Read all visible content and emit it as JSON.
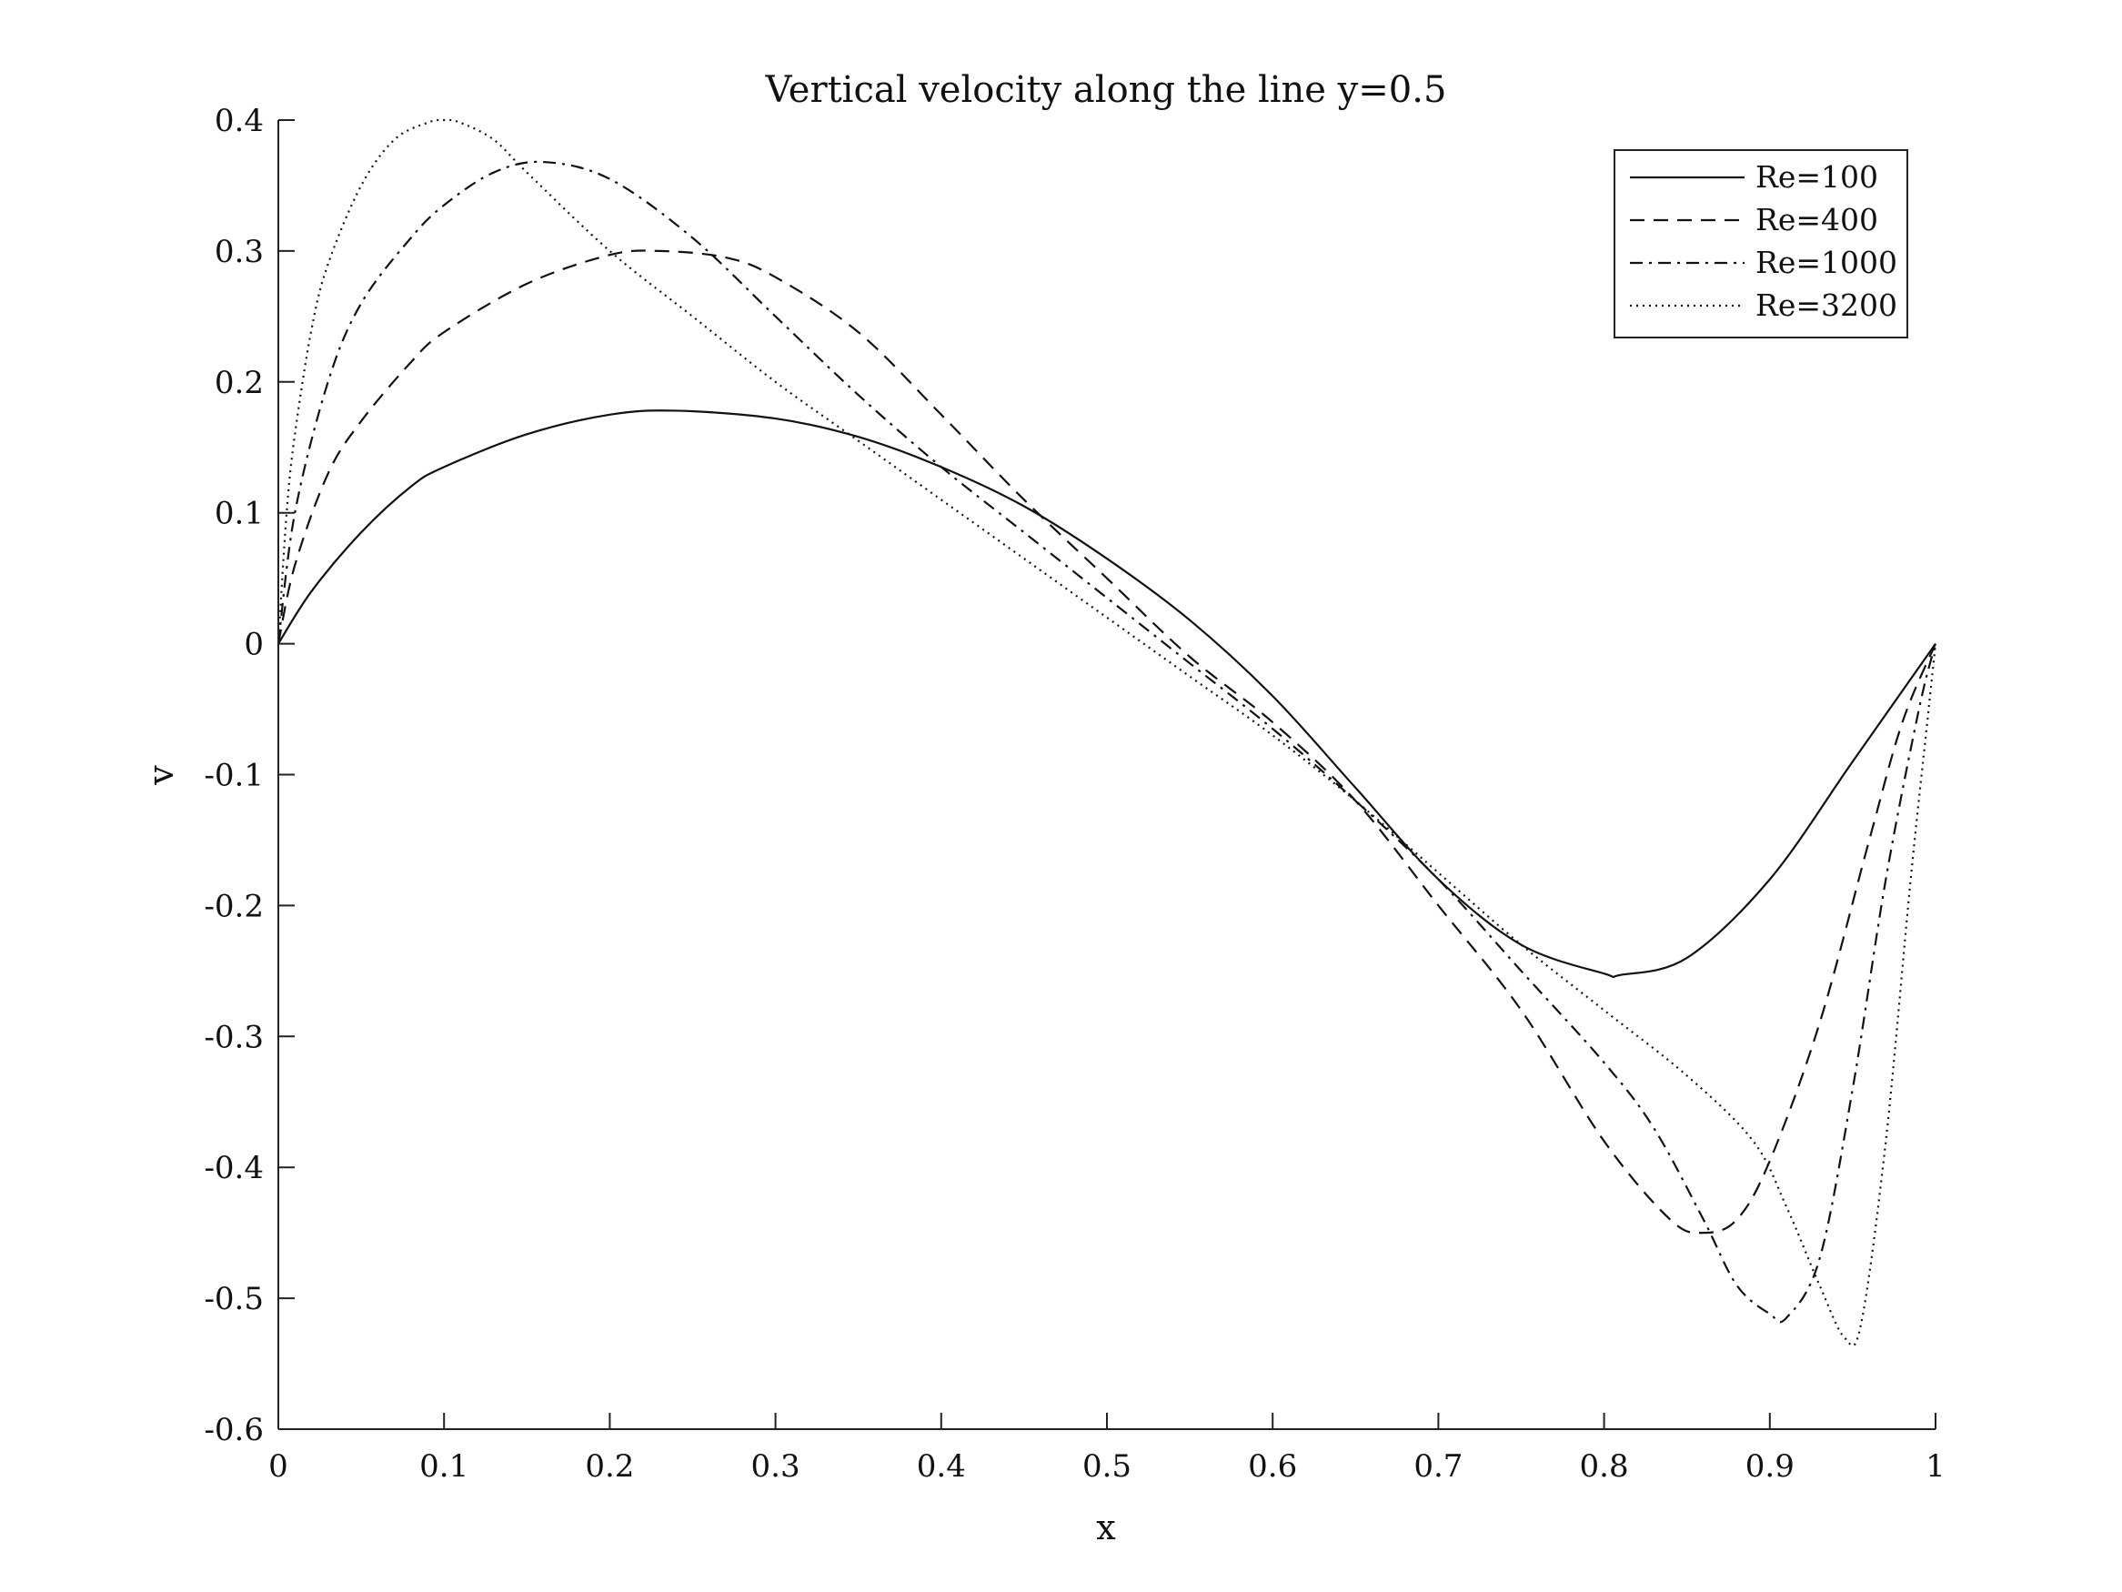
{
  "chart_data": {
    "type": "line",
    "title": "Vertical velocity along the line y=0.5",
    "xlabel": "x",
    "ylabel": "v",
    "xlim": [
      0,
      1
    ],
    "ylim": [
      -0.6,
      0.4
    ],
    "xticks": [
      0,
      0.1,
      0.2,
      0.3,
      0.4,
      0.5,
      0.6,
      0.7,
      0.8,
      0.9,
      1
    ],
    "xtick_labels": [
      "0",
      "0.1",
      "0.2",
      "0.3",
      "0.4",
      "0.5",
      "0.6",
      "0.7",
      "0.8",
      "0.9",
      "1"
    ],
    "yticks": [
      0.4,
      0.3,
      0.2,
      0.1,
      0,
      -0.1,
      -0.2,
      -0.3,
      -0.4,
      -0.5,
      -0.6
    ],
    "ytick_labels": [
      "0.4",
      "0.3",
      "0.2",
      "0.1",
      "0",
      "-0.1",
      "-0.2",
      "-0.3",
      "-0.4",
      "-0.5",
      "-0.6"
    ],
    "grid": false,
    "legend_position": "top-right",
    "series": [
      {
        "name": "Re=100",
        "style": "solid",
        "x": [
          0,
          0.02,
          0.05,
          0.08,
          0.1,
          0.15,
          0.2,
          0.24,
          0.3,
          0.35,
          0.4,
          0.45,
          0.5,
          0.55,
          0.6,
          0.65,
          0.7,
          0.75,
          0.8,
          0.81,
          0.85,
          0.9,
          0.95,
          1
        ],
        "y": [
          0,
          0.04,
          0.085,
          0.12,
          0.135,
          0.16,
          0.175,
          0.178,
          0.172,
          0.158,
          0.135,
          0.105,
          0.065,
          0.018,
          -0.04,
          -0.11,
          -0.18,
          -0.23,
          -0.252,
          -0.253,
          -0.24,
          -0.18,
          -0.09,
          0
        ]
      },
      {
        "name": "Re=400",
        "style": "dashed",
        "x": [
          0,
          0.01,
          0.03,
          0.05,
          0.08,
          0.1,
          0.15,
          0.2,
          0.23,
          0.27,
          0.3,
          0.35,
          0.4,
          0.45,
          0.5,
          0.55,
          0.6,
          0.65,
          0.7,
          0.75,
          0.8,
          0.84,
          0.86,
          0.88,
          0.9,
          0.93,
          0.96,
          0.98,
          1
        ],
        "y": [
          0,
          0.06,
          0.13,
          0.17,
          0.215,
          0.238,
          0.275,
          0.297,
          0.3,
          0.295,
          0.28,
          0.238,
          0.175,
          0.11,
          0.05,
          -0.01,
          -0.06,
          -0.12,
          -0.2,
          -0.28,
          -0.38,
          -0.44,
          -0.45,
          -0.44,
          -0.395,
          -0.29,
          -0.15,
          -0.06,
          0
        ]
      },
      {
        "name": "Re=1000",
        "style": "dashdot",
        "x": [
          0,
          0.01,
          0.03,
          0.05,
          0.08,
          0.1,
          0.13,
          0.16,
          0.2,
          0.25,
          0.3,
          0.35,
          0.4,
          0.45,
          0.5,
          0.55,
          0.6,
          0.65,
          0.7,
          0.75,
          0.8,
          0.83,
          0.86,
          0.88,
          0.9,
          0.91,
          0.93,
          0.95,
          0.97,
          0.99,
          1
        ],
        "y": [
          0,
          0.1,
          0.2,
          0.26,
          0.31,
          0.335,
          0.36,
          0.368,
          0.355,
          0.31,
          0.25,
          0.19,
          0.135,
          0.085,
          0.035,
          -0.015,
          -0.065,
          -0.12,
          -0.18,
          -0.25,
          -0.32,
          -0.37,
          -0.44,
          -0.49,
          -0.512,
          -0.515,
          -0.47,
          -0.34,
          -0.18,
          -0.05,
          0
        ]
      },
      {
        "name": "Re=3200",
        "style": "dotted",
        "x": [
          0,
          0.005,
          0.01,
          0.02,
          0.03,
          0.05,
          0.07,
          0.09,
          0.1,
          0.11,
          0.13,
          0.15,
          0.2,
          0.25,
          0.3,
          0.35,
          0.4,
          0.45,
          0.5,
          0.55,
          0.6,
          0.65,
          0.7,
          0.75,
          0.8,
          0.85,
          0.89,
          0.91,
          0.93,
          0.945,
          0.955,
          0.97,
          0.985,
          0.995,
          1
        ],
        "y": [
          0,
          0.1,
          0.16,
          0.24,
          0.29,
          0.35,
          0.385,
          0.398,
          0.4,
          0.398,
          0.385,
          0.36,
          0.3,
          0.25,
          0.2,
          0.155,
          0.11,
          0.065,
          0.02,
          -0.025,
          -0.07,
          -0.12,
          -0.175,
          -0.23,
          -0.28,
          -0.33,
          -0.38,
          -0.43,
          -0.49,
          -0.53,
          -0.52,
          -0.38,
          -0.18,
          -0.06,
          0
        ]
      }
    ]
  }
}
